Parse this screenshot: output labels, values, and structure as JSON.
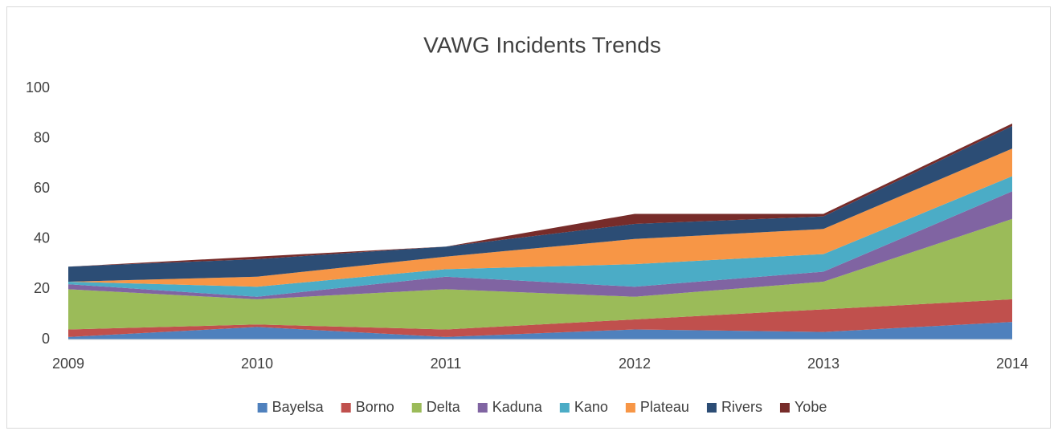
{
  "chart_data": {
    "type": "stacked_area",
    "title": "VAWG Incidents Trends",
    "categories": [
      "2009",
      "2010",
      "2011",
      "2012",
      "2013",
      "2014"
    ],
    "series": [
      {
        "name": "Bayelsa",
        "color": "#4f81bd",
        "values": [
          1,
          5,
          1,
          4,
          3,
          7
        ]
      },
      {
        "name": "Borno",
        "color": "#c0504d",
        "values": [
          3,
          1,
          3,
          4,
          9,
          9
        ]
      },
      {
        "name": "Delta",
        "color": "#9bbb59",
        "values": [
          16,
          10,
          16,
          9,
          11,
          32
        ]
      },
      {
        "name": "Kaduna",
        "color": "#8064a2",
        "values": [
          2,
          1,
          5,
          4,
          4,
          11
        ]
      },
      {
        "name": "Kano",
        "color": "#4bacc6",
        "values": [
          1,
          4,
          3,
          9,
          7,
          6
        ]
      },
      {
        "name": "Plateau",
        "color": "#f79646",
        "values": [
          0,
          4,
          5,
          10,
          10,
          11
        ]
      },
      {
        "name": "Rivers",
        "color": "#2c4d75",
        "values": [
          6,
          7,
          4,
          6,
          5,
          9
        ]
      },
      {
        "name": "Yobe",
        "color": "#772c2a",
        "values": [
          0,
          1,
          0,
          4,
          1,
          1
        ]
      }
    ],
    "ylim": [
      0,
      100
    ],
    "yticks": [
      0,
      20,
      40,
      60,
      80,
      100
    ],
    "grid": false,
    "legend": "bottom"
  }
}
